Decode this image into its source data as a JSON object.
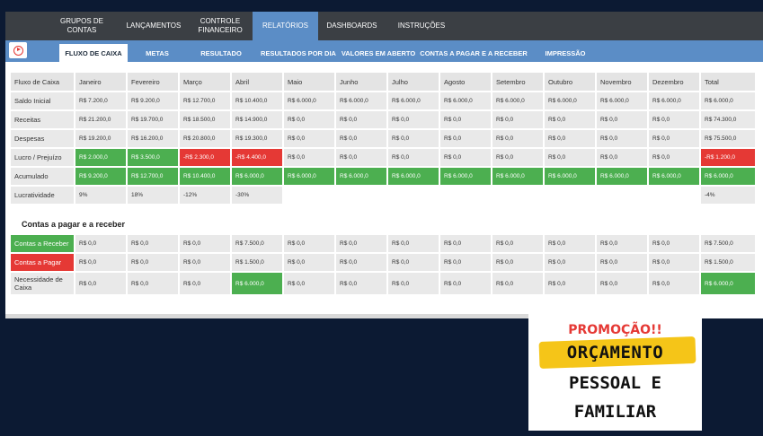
{
  "topnav": [
    {
      "label": "GRUPOS DE\nCONTAS",
      "active": false
    },
    {
      "label": "LANÇAMENTOS",
      "active": false
    },
    {
      "label": "CONTROLE\nFINANCEIRO",
      "active": false
    },
    {
      "label": "RELATÓRIOS",
      "active": true
    },
    {
      "label": "DASHBOARDS",
      "active": false
    },
    {
      "label": "INSTRUÇÕES",
      "active": false
    }
  ],
  "subnav": [
    {
      "label": "FLUXO DE CAIXA",
      "active": true
    },
    {
      "label": "METAS",
      "active": false
    },
    {
      "label": "RESULTADO",
      "active": false
    },
    {
      "label": "RESULTADOS POR DIA",
      "active": false
    },
    {
      "label": "VALORES EM ABERTO",
      "active": false
    },
    {
      "label": "CONTAS A PAGAR E A  RECEBER",
      "active": false
    },
    {
      "label": "IMPRESSÃO",
      "active": false
    }
  ],
  "cashflow": {
    "headers": [
      "Fluxo de Caixa",
      "Janeiro",
      "Fevereiro",
      "Março",
      "Abril",
      "Maio",
      "Junho",
      "Julho",
      "Agosto",
      "Setembro",
      "Outubro",
      "Novembro",
      "Dezembro",
      "Total"
    ],
    "rows": [
      {
        "label": "Saldo Inicial",
        "cells": [
          "R$ 7.200,0",
          "R$ 9.200,0",
          "R$ 12.700,0",
          "R$ 10.400,0",
          "R$ 6.000,0",
          "R$ 6.000,0",
          "R$ 6.000,0",
          "R$ 6.000,0",
          "R$ 6.000,0",
          "R$ 6.000,0",
          "R$ 6.000,0",
          "R$ 6.000,0",
          "R$ 6.000,0"
        ],
        "colors": [
          "",
          "",
          "",
          "",
          "",
          "",
          "",
          "",
          "",
          "",
          "",
          "",
          ""
        ]
      },
      {
        "label": "Receitas",
        "cells": [
          "R$ 21.200,0",
          "R$ 19.700,0",
          "R$ 18.500,0",
          "R$ 14.900,0",
          "R$ 0,0",
          "R$ 0,0",
          "R$ 0,0",
          "R$ 0,0",
          "R$ 0,0",
          "R$ 0,0",
          "R$ 0,0",
          "R$ 0,0",
          "R$ 74.300,0"
        ],
        "colors": [
          "",
          "",
          "",
          "",
          "",
          "",
          "",
          "",
          "",
          "",
          "",
          "",
          ""
        ]
      },
      {
        "label": "Despesas",
        "cells": [
          "R$ 19.200,0",
          "R$ 16.200,0",
          "R$ 20.800,0",
          "R$ 19.300,0",
          "R$ 0,0",
          "R$ 0,0",
          "R$ 0,0",
          "R$ 0,0",
          "R$ 0,0",
          "R$ 0,0",
          "R$ 0,0",
          "R$ 0,0",
          "R$ 75.500,0"
        ],
        "colors": [
          "",
          "",
          "",
          "",
          "",
          "",
          "",
          "",
          "",
          "",
          "",
          "",
          ""
        ]
      },
      {
        "label": "Lucro / Prejuízo",
        "cells": [
          "R$ 2.000,0",
          "R$ 3.500,0",
          "-R$ 2.300,0",
          "-R$ 4.400,0",
          "R$ 0,0",
          "R$ 0,0",
          "R$ 0,0",
          "R$ 0,0",
          "R$ 0,0",
          "R$ 0,0",
          "R$ 0,0",
          "R$ 0,0",
          "-R$ 1.200,0"
        ],
        "colors": [
          "g",
          "g",
          "r",
          "r",
          "",
          "",
          "",
          "",
          "",
          "",
          "",
          "",
          "r"
        ]
      },
      {
        "label": "Acumulado",
        "cells": [
          "R$ 9.200,0",
          "R$ 12.700,0",
          "R$ 10.400,0",
          "R$ 6.000,0",
          "R$ 6.000,0",
          "R$ 6.000,0",
          "R$ 6.000,0",
          "R$ 6.000,0",
          "R$ 6.000,0",
          "R$ 6.000,0",
          "R$ 6.000,0",
          "R$ 6.000,0",
          "R$ 6.000,0"
        ],
        "colors": [
          "g",
          "g",
          "g",
          "g",
          "g",
          "g",
          "g",
          "g",
          "g",
          "g",
          "g",
          "g",
          "g"
        ]
      },
      {
        "label": "Lucratividade",
        "cells": [
          "9%",
          "18%",
          "-12%",
          "-30%",
          "",
          "",
          "",
          "",
          "",
          "",
          "",
          "",
          "-4%"
        ],
        "colors": [
          "",
          "",
          "",
          "",
          "",
          "",
          "",
          "",
          "",
          "",
          "",
          "",
          ""
        ]
      }
    ]
  },
  "payables": {
    "title": "Contas a pagar e a receber",
    "rows": [
      {
        "label": "Contas a Receber",
        "label_color": "g",
        "cells": [
          "R$ 0,0",
          "R$ 0,0",
          "R$ 0,0",
          "R$ 7.500,0",
          "R$ 0,0",
          "R$ 0,0",
          "R$ 0,0",
          "R$ 0,0",
          "R$ 0,0",
          "R$ 0,0",
          "R$ 0,0",
          "R$ 0,0",
          "R$ 7.500,0"
        ],
        "colors": [
          "",
          "",
          "",
          "",
          "",
          "",
          "",
          "",
          "",
          "",
          "",
          "",
          ""
        ]
      },
      {
        "label": "Contas a Pagar",
        "label_color": "r",
        "cells": [
          "R$ 0,0",
          "R$ 0,0",
          "R$ 0,0",
          "R$ 1.500,0",
          "R$ 0,0",
          "R$ 0,0",
          "R$ 0,0",
          "R$ 0,0",
          "R$ 0,0",
          "R$ 0,0",
          "R$ 0,0",
          "R$ 0,0",
          "R$ 1.500,0"
        ],
        "colors": [
          "",
          "",
          "",
          "",
          "",
          "",
          "",
          "",
          "",
          "",
          "",
          "",
          ""
        ]
      },
      {
        "label": "Necessidade de Caixa",
        "label_color": "",
        "cells": [
          "R$ 0,0",
          "R$ 0,0",
          "R$ 0,0",
          "R$ 6.000,0",
          "R$ 0,0",
          "R$ 0,0",
          "R$ 0,0",
          "R$ 0,0",
          "R$ 0,0",
          "R$ 0,0",
          "R$ 0,0",
          "R$ 0,0",
          "R$ 6.000,0"
        ],
        "colors": [
          "",
          "",
          "",
          "g",
          "",
          "",
          "",
          "",
          "",
          "",
          "",
          "",
          "g"
        ]
      }
    ]
  },
  "promo": {
    "tag": "PROMOÇÃO!!",
    "line1": "ORÇAMENTO",
    "line2": "PESSOAL E",
    "line3": "FAMILIAR"
  },
  "colors": {
    "nav_dark": "#3b3f44",
    "nav_blue": "#5b8dc6",
    "positive": "#4caf50",
    "negative": "#e53935",
    "promo_yellow": "#f5c518"
  }
}
